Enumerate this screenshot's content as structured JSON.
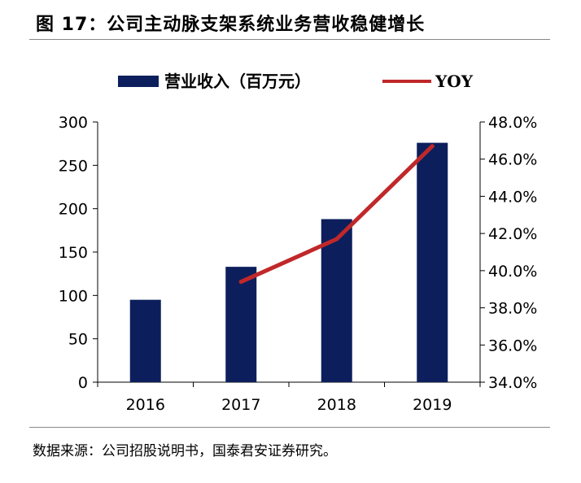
{
  "header": {
    "title": "图 17：公司主动脉支架系统业务营收稳健增长"
  },
  "footer": {
    "source": "数据来源：公司招股说明书，国泰君安证券研究。"
  },
  "chart_data": {
    "type": "bar+line",
    "title": "图 17：公司主动脉支架系统业务营收稳健增长",
    "categories": [
      "2016",
      "2017",
      "2018",
      "2019"
    ],
    "series": [
      {
        "name": "营业收入（百万元）",
        "type": "bar",
        "axis": "left",
        "values": [
          95,
          133,
          188,
          276
        ],
        "color": "#0c1f5c"
      },
      {
        "name": "YOY",
        "type": "line",
        "axis": "right",
        "values": [
          null,
          39.4,
          41.7,
          46.7
        ],
        "color": "#c0282a"
      }
    ],
    "y_left": {
      "ylim": [
        0,
        300
      ],
      "ticks": [
        "0",
        "50",
        "100",
        "150",
        "200",
        "250",
        "300"
      ]
    },
    "y_right": {
      "ylim": [
        34,
        48
      ],
      "ticks": [
        "34.0%",
        "36.0%",
        "38.0%",
        "40.0%",
        "42.0%",
        "44.0%",
        "46.0%",
        "48.0%"
      ]
    },
    "legend": {
      "placement": "top-center"
    }
  }
}
